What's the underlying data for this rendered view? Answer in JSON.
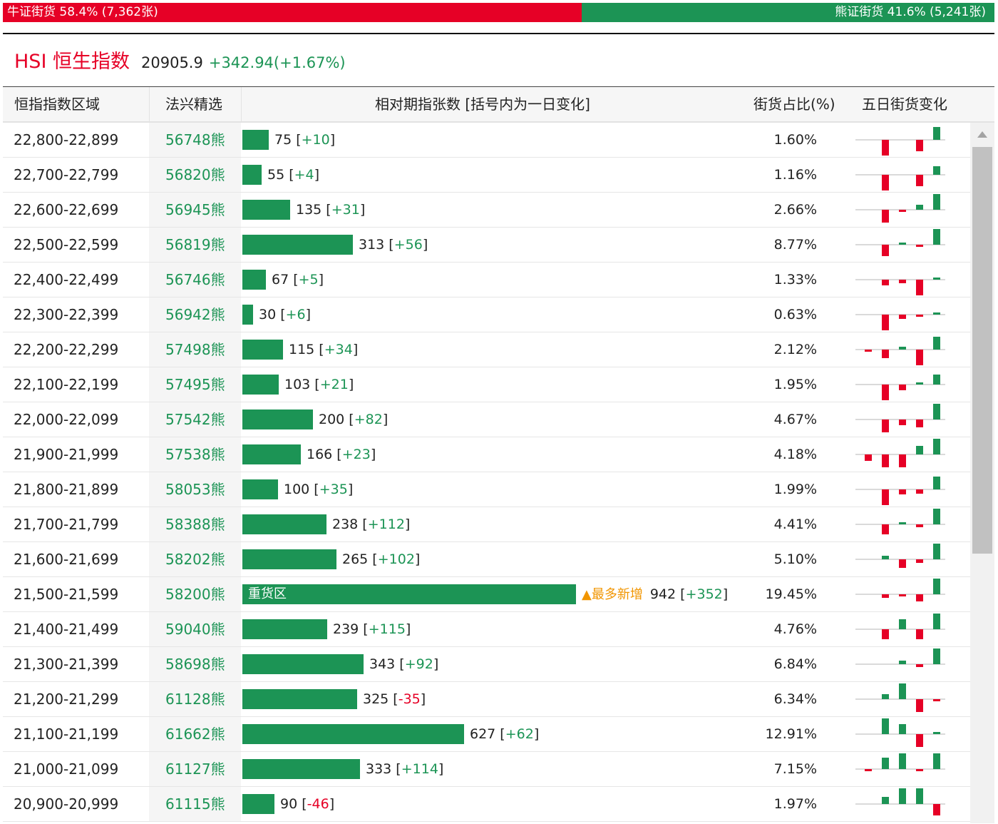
{
  "ratio": {
    "bull_label": "牛证街货 58.4% (7,362张)",
    "bear_label": "熊证街货 41.6% (5,241张)",
    "bull_fraction": 0.584,
    "bull_color": "#e60026",
    "bear_color": "#1c9455"
  },
  "index": {
    "name": "HSI 恒生指数",
    "value": "20905.9",
    "change": "+342.94(+1.67%)"
  },
  "columns": {
    "range": "恒指指数区域",
    "issuer": "法兴精选",
    "outstanding": "相对期指张数 [括号内为一日变化]",
    "pct": "街货占比(%)",
    "five_day": "五日街货变化"
  },
  "heavy_zone_label": "重货区",
  "most_new_label": "▲最多新增",
  "rows": [
    {
      "range": "22,800-22,899",
      "code": "56748熊",
      "count": 75,
      "count_text": "75",
      "change": "+10",
      "pct": "1.60%",
      "spark": [
        0,
        -0.55,
        0,
        -0.4,
        0.45
      ]
    },
    {
      "range": "22,700-22,799",
      "code": "56820熊",
      "count": 55,
      "count_text": "55",
      "change": "+4",
      "pct": "1.16%",
      "spark": [
        0,
        -0.55,
        0,
        -0.4,
        0.3
      ]
    },
    {
      "range": "22,600-22,699",
      "code": "56945熊",
      "count": 135,
      "count_text": "135",
      "change": "+31",
      "pct": "2.66%",
      "spark": [
        0,
        -0.45,
        -0.08,
        0.18,
        0.55
      ]
    },
    {
      "range": "22,500-22,599",
      "code": "56819熊",
      "count": 313,
      "count_text": "313",
      "change": "+56",
      "pct": "8.77%",
      "spark": [
        0,
        -0.4,
        0.04,
        -0.05,
        0.55
      ]
    },
    {
      "range": "22,400-22,499",
      "code": "56746熊",
      "count": 67,
      "count_text": "67",
      "change": "+5",
      "pct": "1.33%",
      "spark": [
        0,
        -0.2,
        -0.12,
        -0.55,
        0.08
      ]
    },
    {
      "range": "22,300-22,399",
      "code": "56942熊",
      "count": 30,
      "count_text": "30",
      "change": "+6",
      "pct": "0.63%",
      "spark": [
        0,
        -0.55,
        -0.15,
        -0.04,
        0.04
      ]
    },
    {
      "range": "22,200-22,299",
      "code": "57498熊",
      "count": 115,
      "count_text": "115",
      "change": "+34",
      "pct": "2.12%",
      "spark": [
        -0.05,
        -0.3,
        0.1,
        -0.55,
        0.45
      ]
    },
    {
      "range": "22,100-22,199",
      "code": "57495熊",
      "count": 103,
      "count_text": "103",
      "change": "+21",
      "pct": "1.95%",
      "spark": [
        0,
        -0.55,
        -0.2,
        0.05,
        0.35
      ]
    },
    {
      "range": "22,000-22,099",
      "code": "57542熊",
      "count": 200,
      "count_text": "200",
      "change": "+82",
      "pct": "4.67%",
      "spark": [
        0,
        -0.45,
        -0.2,
        -0.28,
        0.55
      ]
    },
    {
      "range": "21,900-21,999",
      "code": "57538熊",
      "count": 166,
      "count_text": "166",
      "change": "+23",
      "pct": "4.18%",
      "spark": [
        -0.22,
        -0.45,
        -0.45,
        0.3,
        0.55
      ]
    },
    {
      "range": "21,800-21,899",
      "code": "58053熊",
      "count": 100,
      "count_text": "100",
      "change": "+35",
      "pct": "1.99%",
      "spark": [
        0,
        -0.55,
        -0.18,
        -0.15,
        0.45
      ]
    },
    {
      "range": "21,700-21,799",
      "code": "58388熊",
      "count": 238,
      "count_text": "238",
      "change": "+112",
      "pct": "4.41%",
      "spark": [
        0,
        -0.35,
        0.04,
        -0.1,
        0.55
      ]
    },
    {
      "range": "21,600-21,699",
      "code": "58202熊",
      "count": 265,
      "count_text": "265",
      "change": "+102",
      "pct": "5.10%",
      "spark": [
        0,
        0.12,
        -0.3,
        -0.12,
        0.55
      ]
    },
    {
      "range": "21,500-21,599",
      "code": "58200熊",
      "count": 942,
      "count_text": "942",
      "change": "+352",
      "pct": "19.45%",
      "heavy": true,
      "most_new": true,
      "spark": [
        0,
        -0.12,
        -0.08,
        -0.25,
        0.55
      ]
    },
    {
      "range": "21,400-21,499",
      "code": "59040熊",
      "count": 239,
      "count_text": "239",
      "change": "+115",
      "pct": "4.76%",
      "spark": [
        0,
        -0.35,
        0.35,
        -0.35,
        0.55
      ]
    },
    {
      "range": "21,300-21,399",
      "code": "58698熊",
      "count": 343,
      "count_text": "343",
      "change": "+92",
      "pct": "6.84%",
      "spark": [
        0,
        0,
        0.12,
        -0.1,
        0.55
      ]
    },
    {
      "range": "21,200-21,299",
      "code": "61128熊",
      "count": 325,
      "count_text": "325",
      "change": "-35",
      "pct": "6.34%",
      "spark": [
        0,
        0.18,
        0.55,
        -0.45,
        -0.08
      ]
    },
    {
      "range": "21,100-21,199",
      "code": "61662熊",
      "count": 627,
      "count_text": "627",
      "change": "+62",
      "pct": "12.91%",
      "spark": [
        0,
        0.55,
        0.35,
        -0.45,
        0.08
      ]
    },
    {
      "range": "21,000-21,099",
      "code": "61127熊",
      "count": 333,
      "count_text": "333",
      "change": "+114",
      "pct": "7.15%",
      "spark": [
        -0.05,
        0.4,
        0.55,
        -0.08,
        0.55
      ]
    },
    {
      "range": "20,900-20,999",
      "code": "61115熊",
      "count": 90,
      "count_text": "90",
      "change": "-46",
      "pct": "1.97%",
      "spark": [
        0,
        0.25,
        0.55,
        0.55,
        -0.4
      ]
    }
  ]
}
